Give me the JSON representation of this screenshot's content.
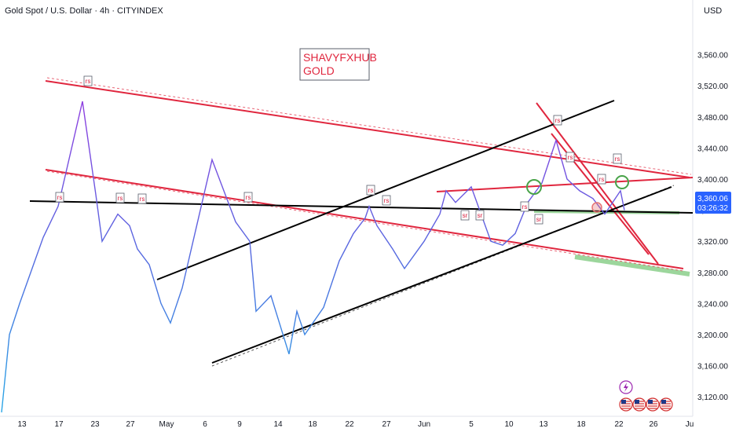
{
  "header": {
    "title": "Gold Spot / U.S. Dollar · 4h · CITYINDEX",
    "currency": "USD"
  },
  "watermark": {
    "line1": "SHAVYFXHUB",
    "line2": "GOLD"
  },
  "price_badge": {
    "price": "3,360.06",
    "countdown": "03:26:32",
    "color": "#2962ff"
  },
  "markers": {
    "rs": "rs",
    "sr": "sr"
  },
  "colors": {
    "price_line_top": "#8e3fe0",
    "price_line_bottom": "#2aa7e6",
    "trendline_red": "#e0263e",
    "trendline_black": "#000000",
    "support_zone": "#7cc97c",
    "circle_marker": "#49a349",
    "circle_marker_red": "#e57373"
  },
  "icons": [
    "lightning-icon",
    "us-flag-icon"
  ],
  "chart_data": {
    "type": "line",
    "title": "Gold Spot / U.S. Dollar · 4h · CITYINDEX",
    "ylabel": "USD",
    "ylim": [
      3095,
      3600
    ],
    "y_ticks": [
      "3,560.00",
      "3,520.00",
      "3,480.00",
      "3,440.00",
      "3,400.00",
      "3,360.00",
      "3,320.00",
      "3,280.00",
      "3,240.00",
      "3,200.00",
      "3,160.00",
      "3,120.00"
    ],
    "y_tick_values": [
      3560,
      3520,
      3480,
      3440,
      3400,
      3360,
      3320,
      3280,
      3240,
      3200,
      3160,
      3120
    ],
    "x_ticks": [
      "13",
      "17",
      "23",
      "27",
      "May",
      "6",
      "9",
      "14",
      "18",
      "22",
      "27",
      "Jun",
      "5",
      "10",
      "13",
      "18",
      "22",
      "26",
      "Ju"
    ],
    "x": [
      "Apr 11",
      "Apr 12",
      "Apr 14",
      "Apr 16",
      "Apr 17",
      "Apr 22",
      "Apr 23",
      "Apr 24",
      "Apr 25",
      "Apr 28",
      "Apr 29",
      "Apr 30",
      "May 2",
      "May 5",
      "May 6",
      "May 7",
      "May 8",
      "May 9",
      "May 12",
      "May 13",
      "May 14",
      "May 15",
      "May 16",
      "May 19",
      "May 20",
      "May 21",
      "May 22",
      "May 23",
      "May 26",
      "May 27",
      "May 28",
      "May 30",
      "Jun 2",
      "Jun 3",
      "Jun 4",
      "Jun 5",
      "Jun 6",
      "Jun 9",
      "Jun 10",
      "Jun 11",
      "Jun 12",
      "Jun 13",
      "Jun 16",
      "Jun 17",
      "Jun 18",
      "Jun 19",
      "Jun 20",
      "Jun 23"
    ],
    "series": [
      {
        "values": [
          3100,
          3200,
          3240,
          3325,
          3365,
          3500,
          3380,
          3320,
          3355,
          3340,
          3310,
          3290,
          3240,
          3215,
          3260,
          3425,
          3345,
          3320,
          3230,
          3250,
          3175,
          3230,
          3200,
          3235,
          3295,
          3330,
          3350,
          3365,
          3340,
          3310,
          3285,
          3320,
          3355,
          3385,
          3370,
          3390,
          3320,
          3315,
          3330,
          3370,
          3395,
          3450,
          3400,
          3385,
          3375,
          3355,
          3385,
          3360.06
        ]
      }
    ],
    "grid": false,
    "legend": "none"
  }
}
